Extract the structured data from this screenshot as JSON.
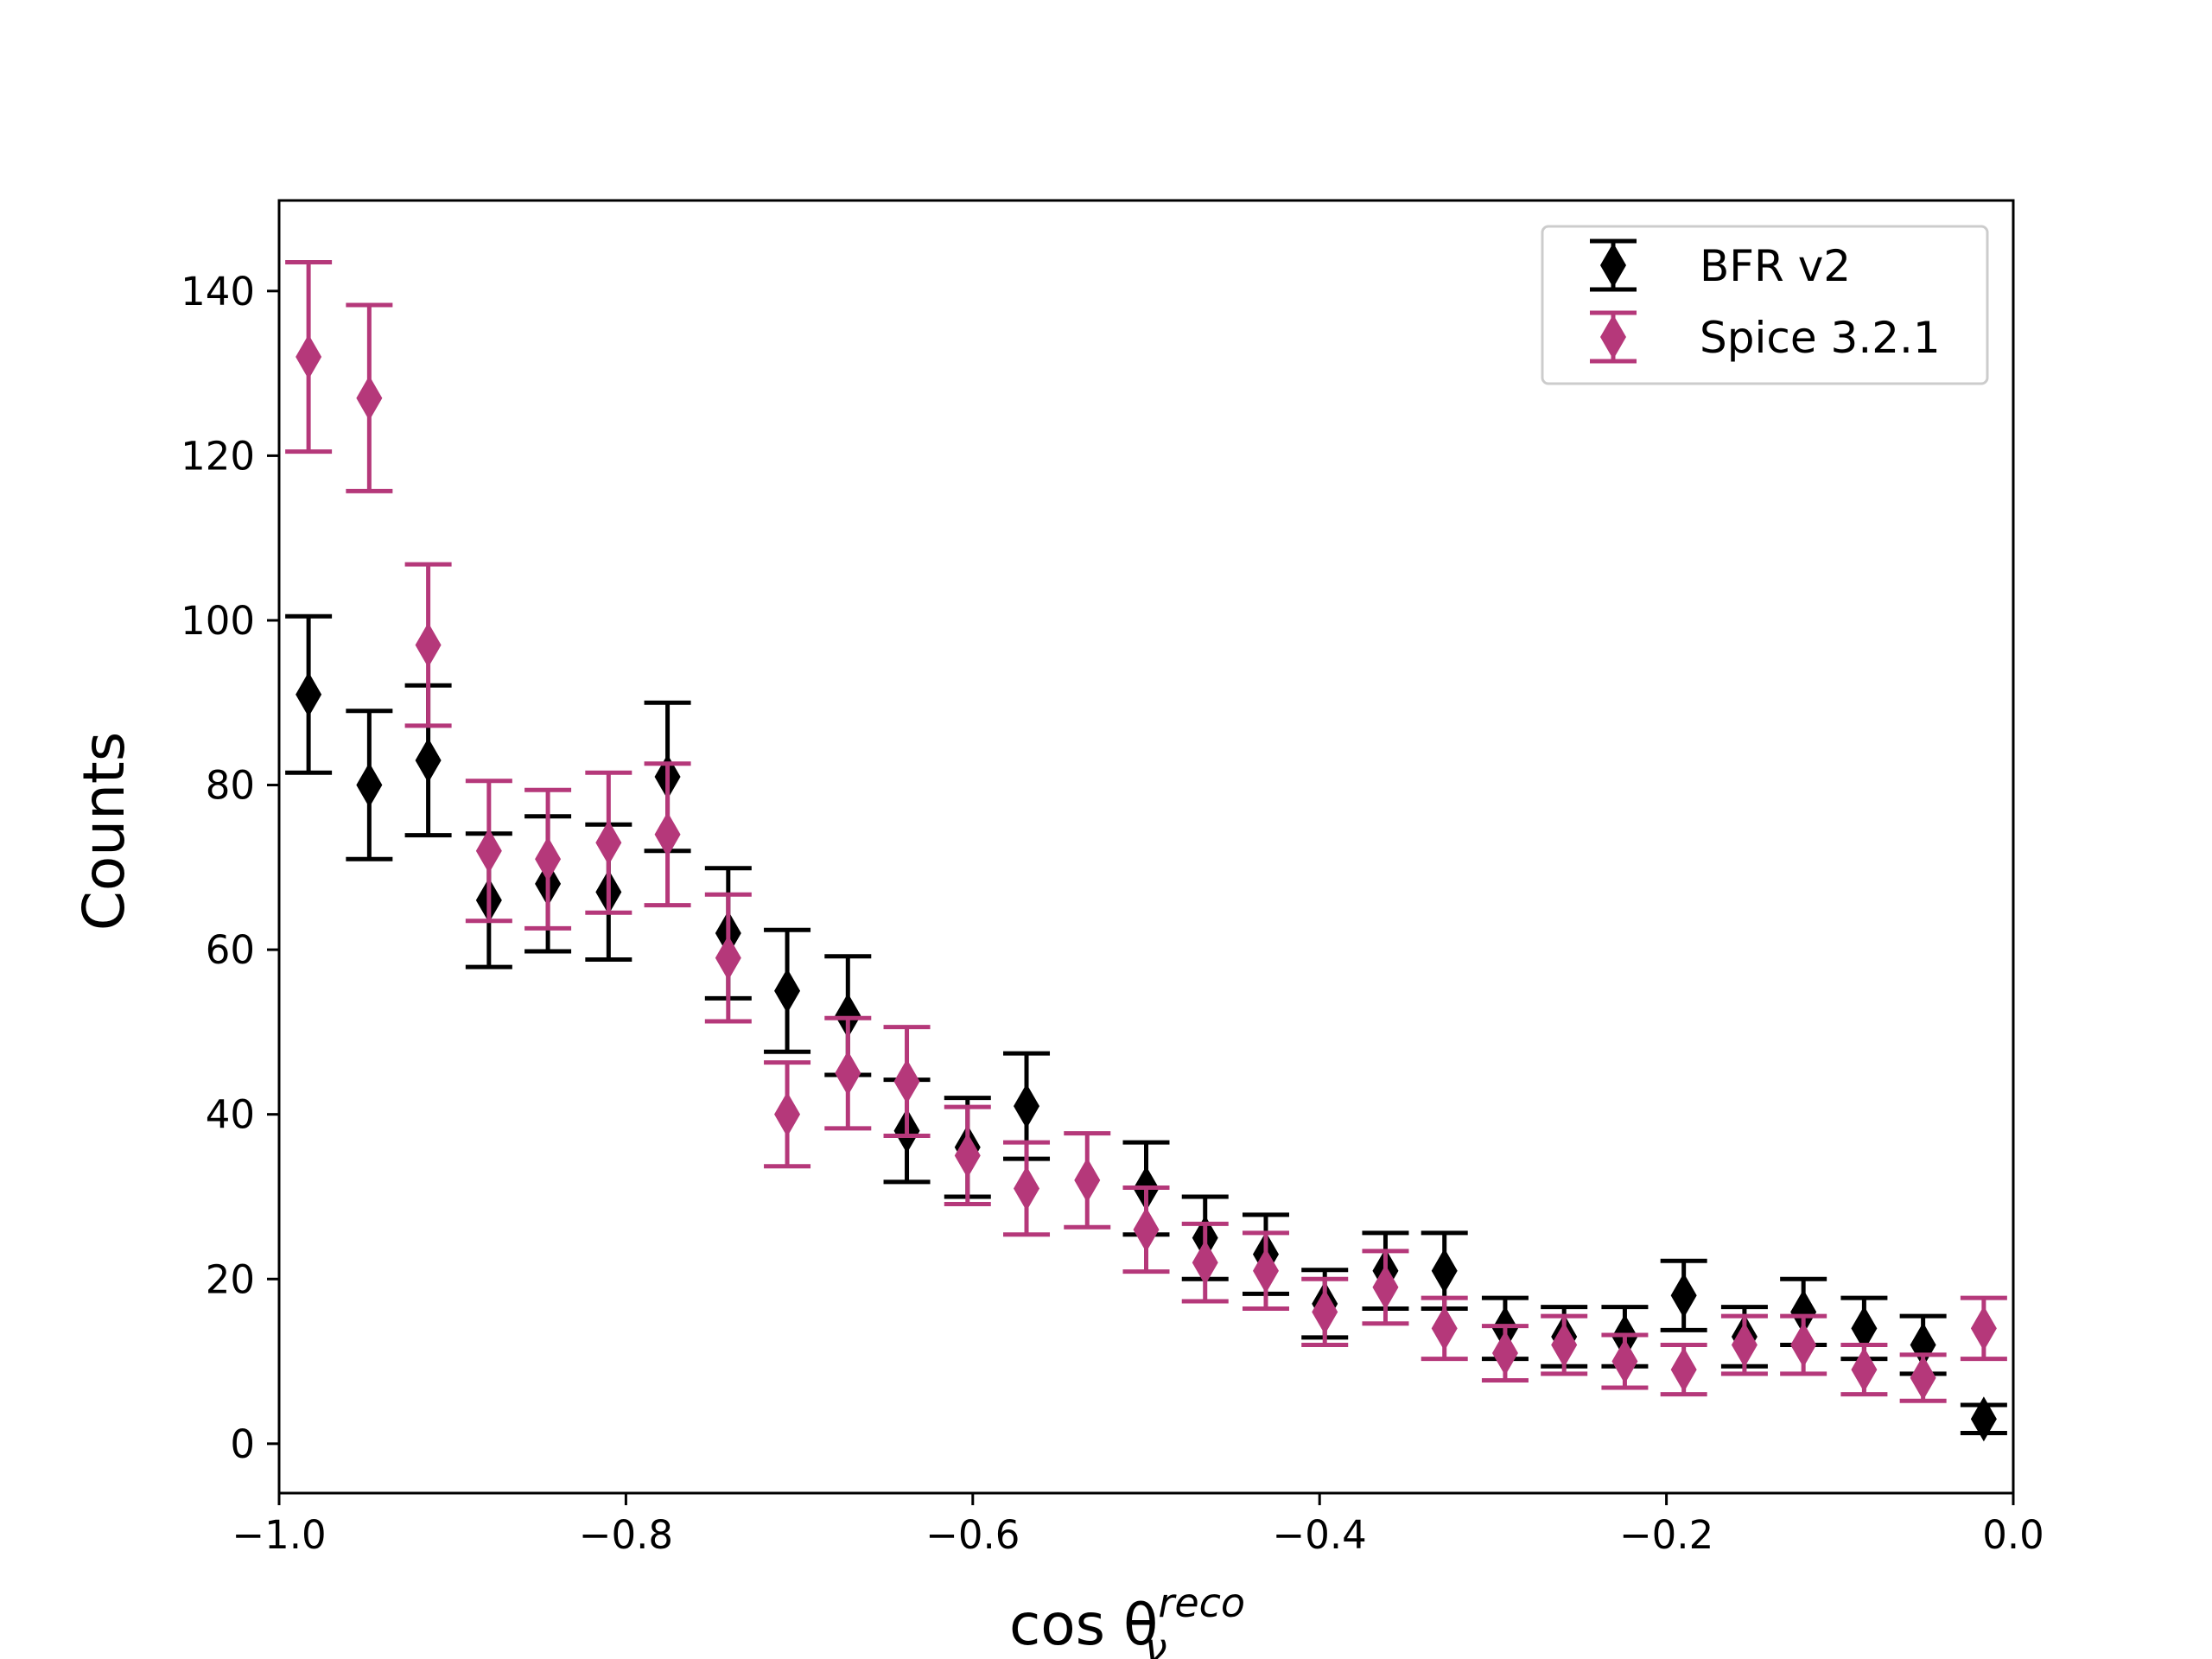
{
  "chart_data": {
    "type": "scatter",
    "title": "",
    "xlabel": "cos θν",
    "xlabel_parts": {
      "base": "cos θ",
      "subscript": "ν",
      "superscript": "reco"
    },
    "ylabel": "Counts",
    "xlim": [
      -1.0,
      0.0
    ],
    "ylim": [
      -6,
      151
    ],
    "x_ticks": [
      -1.0,
      -0.8,
      -0.6,
      -0.4,
      -0.2,
      0.0
    ],
    "x_tick_labels": [
      "−1.0",
      "−0.8",
      "−0.6",
      "−0.4",
      "−0.2",
      "0.0"
    ],
    "y_ticks": [
      0,
      20,
      40,
      60,
      80,
      100,
      120,
      140
    ],
    "y_tick_labels": [
      "0",
      "20",
      "40",
      "60",
      "80",
      "100",
      "120",
      "140"
    ],
    "grid": false,
    "legend_position": "top-right",
    "marker": "diamond",
    "error_bars": true,
    "x": [
      -0.983,
      -0.948,
      -0.914,
      -0.879,
      -0.845,
      -0.81,
      -0.776,
      -0.741,
      -0.707,
      -0.672,
      -0.638,
      -0.603,
      -0.569,
      -0.534,
      -0.5,
      -0.466,
      -0.431,
      -0.397,
      -0.362,
      -0.328,
      -0.293,
      -0.259,
      -0.224,
      -0.19,
      -0.155,
      -0.121,
      -0.086,
      -0.052,
      -0.017
    ],
    "series": [
      {
        "name": "BFR v2",
        "color": "#000000",
        "values": [
          91,
          80,
          83,
          66,
          68,
          67,
          81,
          62,
          55,
          52,
          38,
          36,
          41,
          null,
          31,
          25,
          23,
          17,
          21,
          21,
          14,
          13,
          13,
          18,
          13,
          16,
          14,
          12,
          3
        ],
        "errors": [
          9.5,
          9,
          9.1,
          8.1,
          8.2,
          8.2,
          9,
          7.9,
          7.4,
          7.2,
          6.2,
          6,
          6.4,
          null,
          5.6,
          5,
          4.8,
          4.1,
          4.6,
          4.6,
          3.7,
          3.6,
          3.6,
          4.2,
          3.6,
          4,
          3.7,
          3.5,
          1.7
        ]
      },
      {
        "name": "Spice 3.2.1",
        "color": "#b5387a",
        "values": [
          132,
          127,
          97,
          72,
          71,
          73,
          74,
          59,
          40,
          45,
          44,
          35,
          31,
          32,
          26,
          22,
          21,
          16,
          19,
          14,
          11,
          12,
          10,
          9,
          12,
          12,
          9,
          8,
          14
        ],
        "errors": [
          11.5,
          11.3,
          9.8,
          8.5,
          8.4,
          8.5,
          8.6,
          7.7,
          6.3,
          6.7,
          6.6,
          5.9,
          5.6,
          5.7,
          5.1,
          4.7,
          4.6,
          4,
          4.4,
          3.7,
          3.3,
          3.5,
          3.2,
          3,
          3.5,
          3.5,
          3,
          2.8,
          3.7
        ]
      }
    ]
  }
}
